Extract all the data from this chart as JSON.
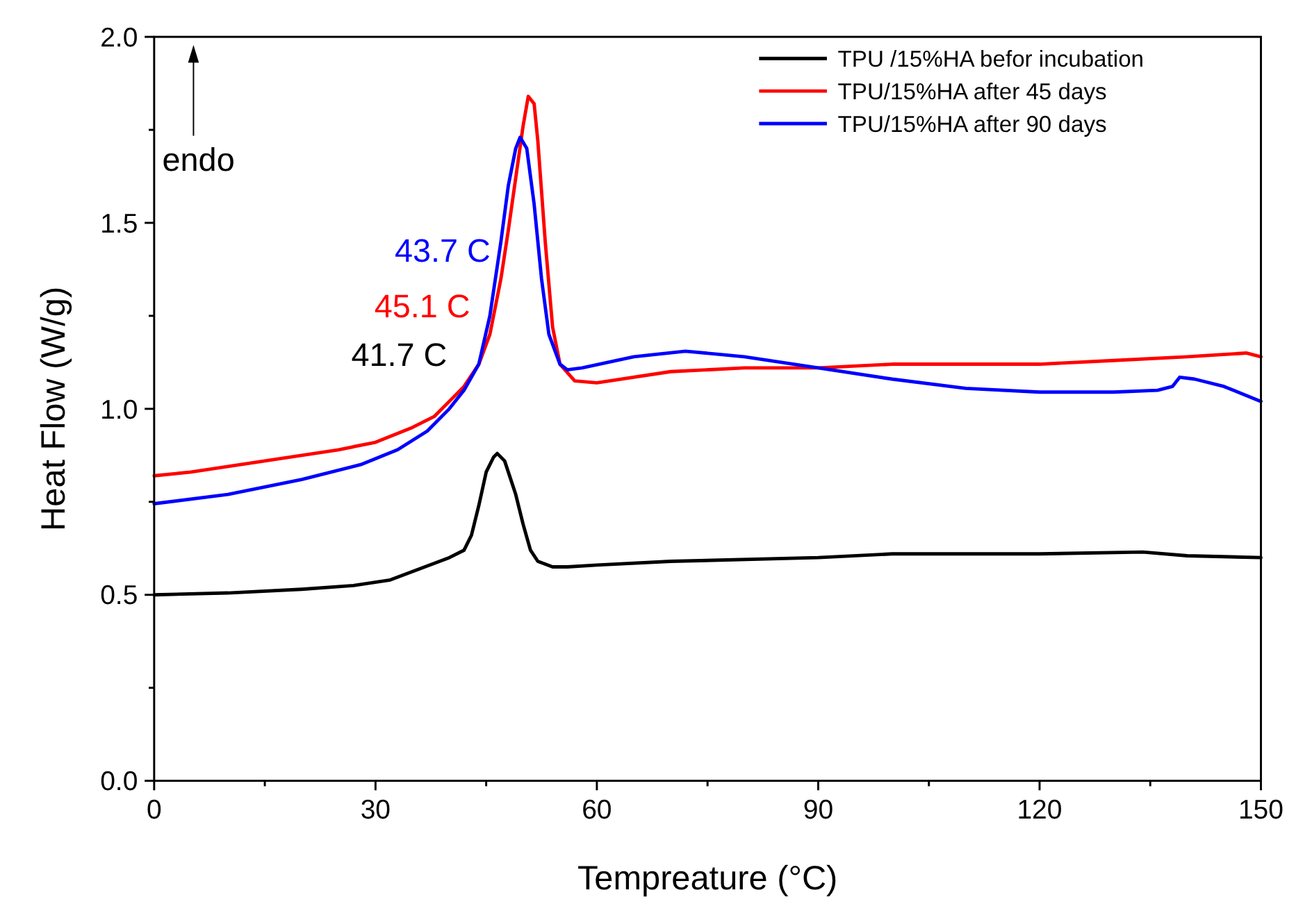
{
  "chart_data": {
    "type": "line",
    "xlabel": "Tempreature (°C)",
    "ylabel": "Heat Flow (W/g)",
    "xlim": [
      0,
      150
    ],
    "ylim": [
      0,
      2
    ],
    "xticks": [
      0,
      {
        "value": 15,
        "label": null
      },
      30,
      {
        "value": 45,
        "label": null
      },
      60,
      {
        "value": 75,
        "label": null
      },
      90,
      {
        "value": 105,
        "label": null
      },
      120,
      {
        "value": 135,
        "label": null
      },
      150
    ],
    "yticks": [
      "0.0",
      {
        "value": 0.25,
        "label": null
      },
      {
        "value": 0.5,
        "label": "0.5"
      },
      {
        "value": 0.75,
        "label": null
      },
      {
        "value": 1,
        "label": "1.0"
      },
      {
        "value": 1.25,
        "label": null
      },
      {
        "value": 1.5,
        "label": "1.5"
      },
      {
        "value": 1.75,
        "label": null
      },
      {
        "value": 2,
        "label": "2.0"
      }
    ],
    "legend": "top right",
    "grid": false,
    "marker": "none",
    "line_style": "solid",
    "annotations": [
      "41.7 C",
      "45.1 C",
      "43.7 C",
      "endo"
    ],
    "series": [
      {
        "name": "TPU /15%HA befor incubation",
        "color": "#000000",
        "x": [
          0,
          10,
          20,
          27,
          32,
          36,
          40,
          42,
          43,
          44,
          45,
          46,
          46.5,
          47.5,
          49,
          50,
          51,
          52,
          54,
          56,
          60,
          70,
          90,
          100,
          120,
          134,
          140,
          150
        ],
        "values": [
          0.5,
          0.505,
          0.515,
          0.525,
          0.54,
          0.57,
          0.6,
          0.62,
          0.66,
          0.74,
          0.83,
          0.87,
          0.88,
          0.86,
          0.77,
          0.69,
          0.62,
          0.59,
          0.575,
          0.575,
          0.58,
          0.59,
          0.6,
          0.61,
          0.61,
          0.615,
          0.605,
          0.6
        ]
      },
      {
        "name": "TPU/15%HA after 45 days",
        "color": "#ff0000",
        "x": [
          0,
          5,
          15,
          25,
          30,
          35,
          38,
          40,
          42,
          44,
          45.5,
          47,
          48,
          49,
          50,
          50.7,
          51.5,
          52,
          53,
          54,
          55,
          57,
          60,
          70,
          80,
          90,
          100,
          120,
          130,
          140,
          148,
          150
        ],
        "values": [
          0.82,
          0.83,
          0.86,
          0.89,
          0.91,
          0.95,
          0.98,
          1.02,
          1.06,
          1.12,
          1.2,
          1.35,
          1.48,
          1.62,
          1.76,
          1.84,
          1.82,
          1.72,
          1.45,
          1.22,
          1.12,
          1.075,
          1.07,
          1.1,
          1.11,
          1.11,
          1.12,
          1.12,
          1.13,
          1.14,
          1.15,
          1.14
        ]
      },
      {
        "name": "TPU/15%HA after 90 days",
        "color": "#0000ff",
        "x": [
          0,
          10,
          20,
          28,
          33,
          37,
          40,
          42,
          44,
          45.5,
          47,
          48,
          49,
          49.6,
          50.5,
          51.5,
          52.5,
          53.5,
          55,
          56,
          58,
          65,
          72,
          80,
          90,
          100,
          110,
          120,
          130,
          136,
          138,
          139,
          141,
          145,
          150
        ],
        "values": [
          0.745,
          0.77,
          0.81,
          0.85,
          0.89,
          0.94,
          1.0,
          1.05,
          1.12,
          1.25,
          1.45,
          1.6,
          1.7,
          1.73,
          1.7,
          1.55,
          1.35,
          1.2,
          1.12,
          1.105,
          1.11,
          1.14,
          1.155,
          1.14,
          1.11,
          1.08,
          1.055,
          1.045,
          1.045,
          1.05,
          1.06,
          1.085,
          1.08,
          1.06,
          1.02
        ]
      }
    ]
  }
}
